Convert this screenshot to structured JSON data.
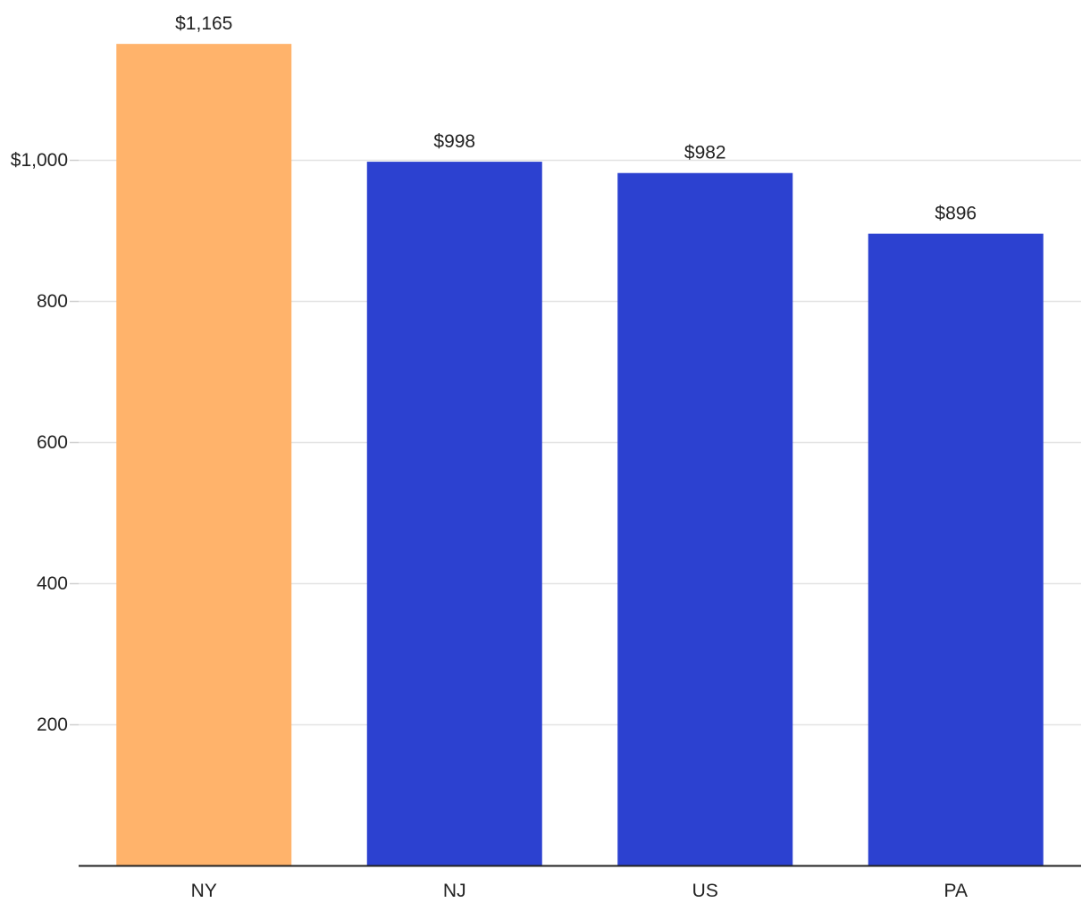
{
  "chart_data": {
    "type": "bar",
    "categories": [
      "NY",
      "NJ",
      "US",
      "PA"
    ],
    "values": [
      1165,
      998,
      982,
      896
    ],
    "value_labels": [
      "$1,165",
      "$998",
      "$982",
      "$896"
    ],
    "colors": [
      "#ffb36b",
      "#2c41d0",
      "#2c41d0",
      "#2c41d0"
    ],
    "yticks": [
      200,
      400,
      600,
      800,
      1000
    ],
    "ytick_labels": [
      "200",
      "400",
      "600",
      "800",
      "$1,000"
    ],
    "ylim": [
      0,
      1200
    ],
    "grid": true,
    "title": "",
    "xlabel": "",
    "ylabel": ""
  }
}
